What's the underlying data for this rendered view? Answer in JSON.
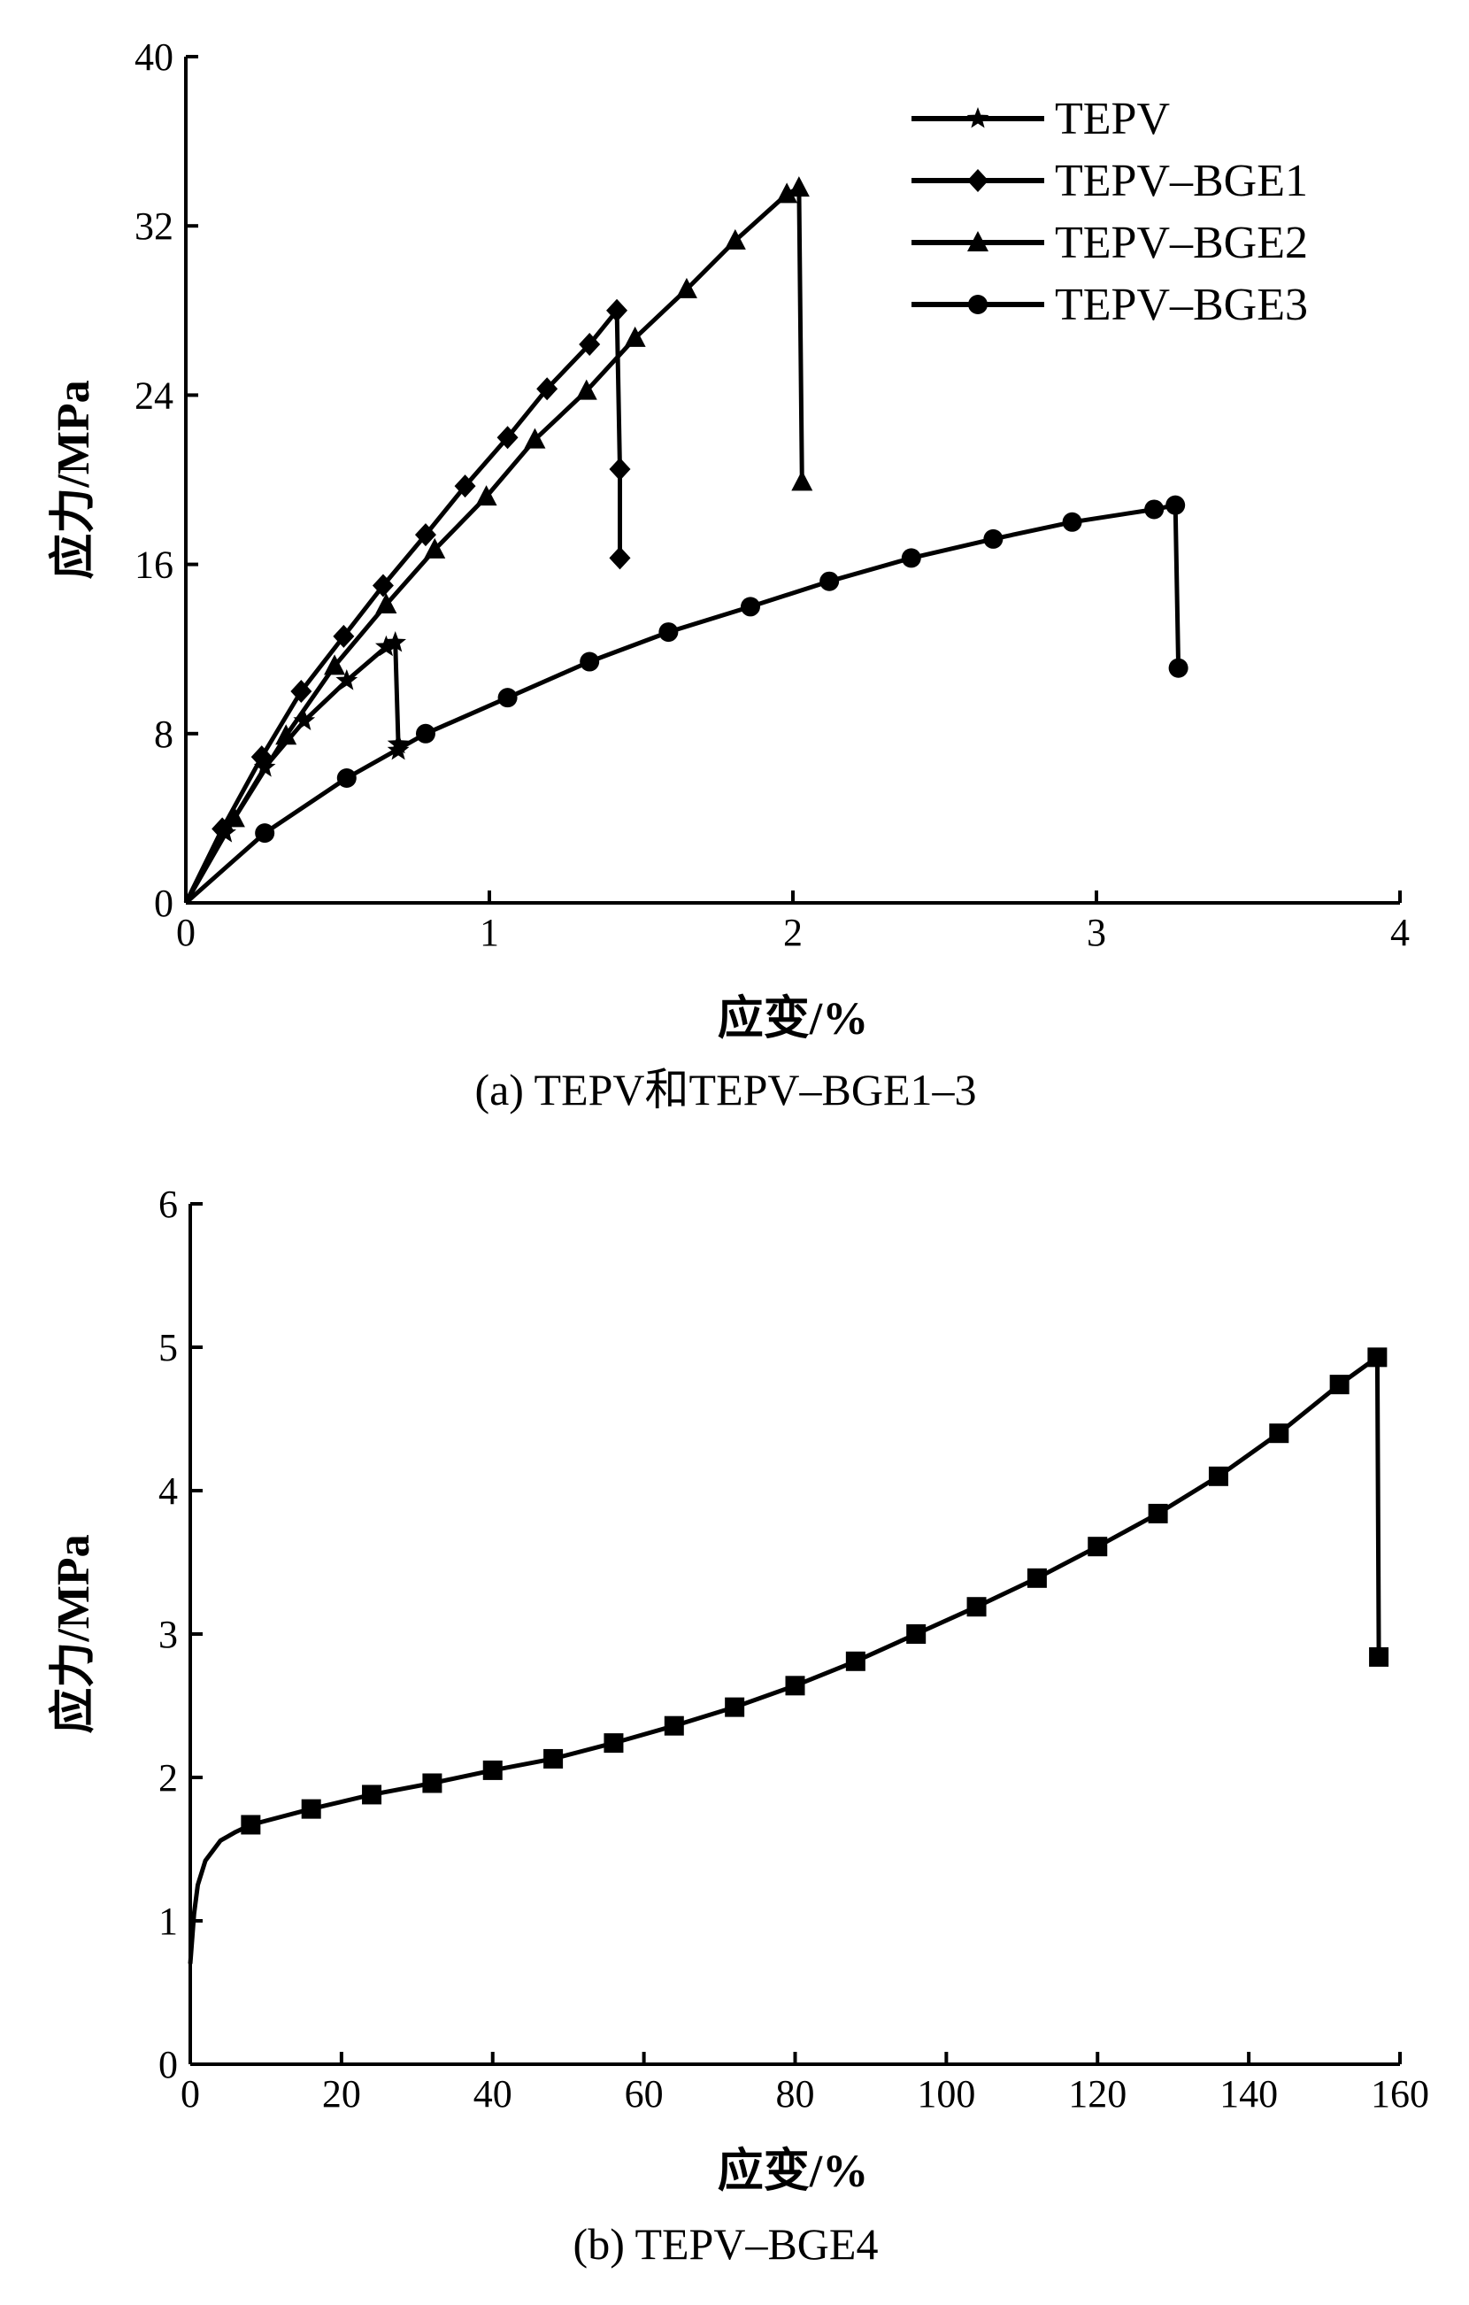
{
  "chart_data": [
    {
      "type": "line",
      "panel": "a",
      "caption": "(a) TEPV和TEPV–BGE1–3",
      "xlabel": "应变/%",
      "ylabel": "应力/MPa",
      "xlim": [
        0,
        4
      ],
      "ylim": [
        0,
        40
      ],
      "xticks": [
        "0",
        "1",
        "2",
        "3",
        "4"
      ],
      "yticks": [
        "0",
        "8",
        "16",
        "24",
        "32",
        "40"
      ],
      "legend_position": "top-right",
      "series": [
        {
          "name": "TEPV",
          "marker": "star",
          "points": [
            [
              0,
              0
            ],
            [
              0.13,
              3.3
            ],
            [
              0.26,
              6.4
            ],
            [
              0.39,
              8.6
            ],
            [
              0.53,
              10.5
            ],
            [
              0.66,
              12.1
            ],
            [
              0.69,
              12.3
            ],
            [
              0.7,
              7.5
            ],
            [
              0.7,
              7.2
            ]
          ]
        },
        {
          "name": "TEPV–BGE1",
          "marker": "diamond",
          "points": [
            [
              0,
              0
            ],
            [
              0.12,
              3.5
            ],
            [
              0.25,
              6.9
            ],
            [
              0.38,
              10.0
            ],
            [
              0.52,
              12.6
            ],
            [
              0.65,
              15.0
            ],
            [
              0.79,
              17.4
            ],
            [
              0.92,
              19.7
            ],
            [
              1.06,
              22.0
            ],
            [
              1.19,
              24.3
            ],
            [
              1.33,
              26.4
            ],
            [
              1.42,
              28.0
            ],
            [
              1.43,
              20.5
            ],
            [
              1.43,
              16.3
            ]
          ]
        },
        {
          "name": "TEPV–BGE2",
          "marker": "triangle",
          "points": [
            [
              0,
              0
            ],
            [
              0.16,
              4.0
            ],
            [
              0.33,
              7.9
            ],
            [
              0.49,
              11.2
            ],
            [
              0.66,
              14.1
            ],
            [
              0.82,
              16.7
            ],
            [
              0.99,
              19.2
            ],
            [
              1.15,
              21.9
            ],
            [
              1.32,
              24.2
            ],
            [
              1.48,
              26.7
            ],
            [
              1.65,
              29.0
            ],
            [
              1.81,
              31.3
            ],
            [
              1.98,
              33.5
            ],
            [
              2.02,
              33.8
            ],
            [
              2.03,
              19.9
            ]
          ]
        },
        {
          "name": "TEPV–BGE3",
          "marker": "circle",
          "points": [
            [
              0,
              0
            ],
            [
              0.26,
              3.3
            ],
            [
              0.53,
              5.9
            ],
            [
              0.79,
              8.0
            ],
            [
              1.06,
              9.7
            ],
            [
              1.33,
              11.4
            ],
            [
              1.59,
              12.8
            ],
            [
              1.86,
              14.0
            ],
            [
              2.12,
              15.2
            ],
            [
              2.39,
              16.3
            ],
            [
              2.66,
              17.2
            ],
            [
              2.92,
              18.0
            ],
            [
              3.19,
              18.6
            ],
            [
              3.26,
              18.8
            ],
            [
              3.27,
              11.1
            ]
          ]
        }
      ]
    },
    {
      "type": "line",
      "panel": "b",
      "caption": "(b) TEPV–BGE4",
      "xlabel": "应变/%",
      "ylabel": "应力/MPa",
      "xlim": [
        0,
        160
      ],
      "ylim": [
        0,
        6
      ],
      "xticks": [
        "0",
        "20",
        "40",
        "60",
        "80",
        "100",
        "120",
        "140",
        "160"
      ],
      "yticks": [
        "0",
        "1",
        "2",
        "3",
        "4",
        "5",
        "6"
      ],
      "series": [
        {
          "name": "TEPV–BGE4",
          "marker": "square",
          "points": [
            [
              0,
              0.7
            ],
            [
              0.5,
              1.05
            ],
            [
              1,
              1.25
            ],
            [
              2,
              1.42
            ],
            [
              4,
              1.56
            ],
            [
              6,
              1.62
            ],
            [
              8,
              1.67
            ],
            [
              16,
              1.78
            ],
            [
              24,
              1.88
            ],
            [
              32,
              1.96
            ],
            [
              40,
              2.05
            ],
            [
              48,
              2.13
            ],
            [
              56,
              2.24
            ],
            [
              64,
              2.36
            ],
            [
              72,
              2.49
            ],
            [
              80,
              2.64
            ],
            [
              88,
              2.81
            ],
            [
              96,
              3.0
            ],
            [
              104,
              3.19
            ],
            [
              112,
              3.39
            ],
            [
              120,
              3.61
            ],
            [
              128,
              3.84
            ],
            [
              136,
              4.1
            ],
            [
              144,
              4.4
            ],
            [
              152,
              4.74
            ],
            [
              157,
              4.93
            ],
            [
              157.2,
              2.84
            ]
          ]
        }
      ]
    }
  ]
}
